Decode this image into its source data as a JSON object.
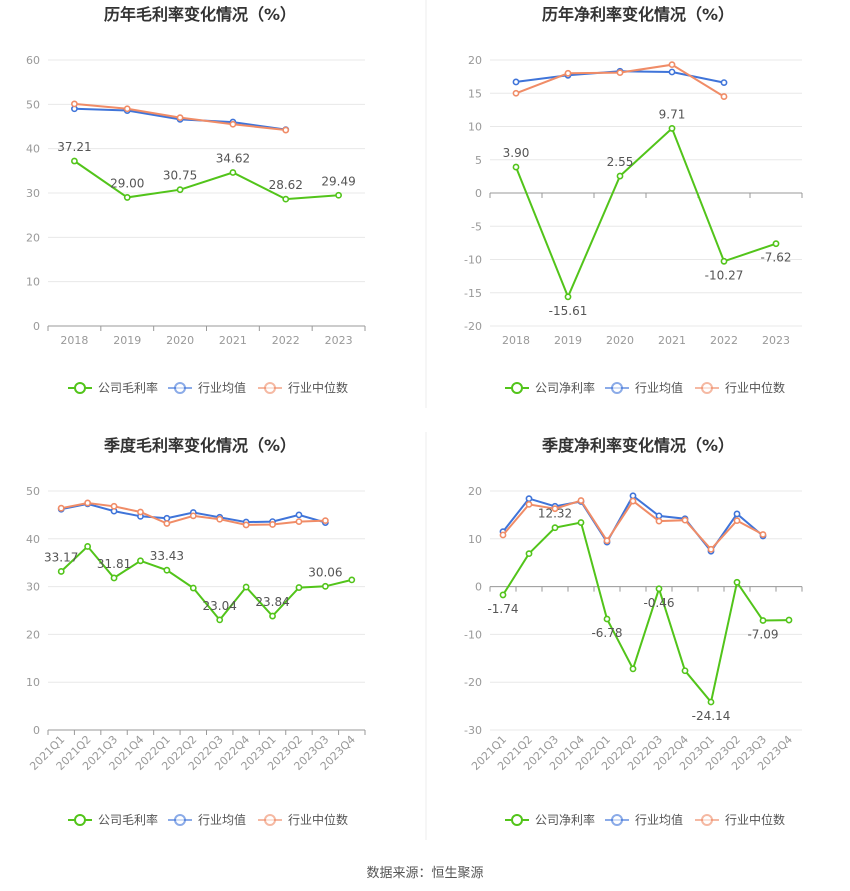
{
  "colors": {
    "company": "#52c41a",
    "industry_avg": "#3f74d9",
    "industry_median": "#f08c67",
    "grid": "#e8e8e8",
    "axis": "#999999",
    "tick_text": "#999999",
    "label_text": "#555555",
    "title_text": "#333333"
  },
  "source": {
    "label": "数据来源：",
    "name": "恒生聚源"
  },
  "chart_data": [
    {
      "id": "annual-gross",
      "type": "line",
      "title": "历年毛利率变化情况（%）",
      "categories": [
        "2018",
        "2019",
        "2020",
        "2021",
        "2022",
        "2023"
      ],
      "ylim": [
        0,
        60
      ],
      "yticks": [
        0,
        10,
        20,
        30,
        40,
        50,
        60
      ],
      "legend": [
        "公司毛利率",
        "行业均值",
        "行业中位数"
      ],
      "series": [
        {
          "name": "公司毛利率",
          "key": "company",
          "values": [
            37.21,
            29.0,
            30.75,
            34.62,
            28.62,
            29.49
          ],
          "labels": [
            "37.21",
            "29.00",
            "30.75",
            "34.62",
            "28.62",
            "29.49"
          ]
        },
        {
          "name": "行业均值",
          "key": "industry_avg",
          "values": [
            49.0,
            48.6,
            46.6,
            46.0,
            44.3,
            null
          ]
        },
        {
          "name": "行业中位数",
          "key": "industry_median",
          "values": [
            50.1,
            49.0,
            47.0,
            45.5,
            44.2,
            null
          ]
        }
      ]
    },
    {
      "id": "annual-net",
      "type": "line",
      "title": "历年净利率变化情况（%）",
      "categories": [
        "2018",
        "2019",
        "2020",
        "2021",
        "2022",
        "2023"
      ],
      "ylim": [
        -20,
        20
      ],
      "yticks": [
        -20,
        -15,
        -10,
        -5,
        0,
        5,
        10,
        15,
        20
      ],
      "legend": [
        "公司净利率",
        "行业均值",
        "行业中位数"
      ],
      "series": [
        {
          "name": "公司净利率",
          "key": "company",
          "values": [
            3.9,
            -15.61,
            2.55,
            9.71,
            -10.27,
            -7.62
          ],
          "labels": [
            "3.90",
            "-15.61",
            "2.55",
            "9.71",
            "-10.27",
            "-7.62"
          ]
        },
        {
          "name": "行业均值",
          "key": "industry_avg",
          "values": [
            16.7,
            17.7,
            18.3,
            18.2,
            16.6,
            null
          ]
        },
        {
          "name": "行业中位数",
          "key": "industry_median",
          "values": [
            15.0,
            18.0,
            18.1,
            19.3,
            14.5,
            null
          ]
        }
      ]
    },
    {
      "id": "quarterly-gross",
      "type": "line",
      "title": "季度毛利率变化情况（%）",
      "categories": [
        "2021Q1",
        "2021Q2",
        "2021Q3",
        "2021Q4",
        "2022Q1",
        "2022Q2",
        "2022Q3",
        "2022Q4",
        "2023Q1",
        "2023Q2",
        "2023Q3",
        "2023Q4"
      ],
      "ylim": [
        0,
        50
      ],
      "yticks": [
        0,
        10,
        20,
        30,
        40,
        50
      ],
      "legend": [
        "公司毛利率",
        "行业均值",
        "行业中位数"
      ],
      "series": [
        {
          "name": "公司毛利率",
          "key": "company",
          "values": [
            33.17,
            38.4,
            31.81,
            35.4,
            33.43,
            29.7,
            23.04,
            29.9,
            23.84,
            29.8,
            30.06,
            31.4
          ],
          "labels": [
            "33.17",
            "",
            "31.81",
            "",
            "33.43",
            "",
            "23.04",
            "",
            "23.84",
            "",
            "30.06",
            ""
          ]
        },
        {
          "name": "行业均值",
          "key": "industry_avg",
          "values": [
            46.2,
            47.3,
            45.8,
            44.7,
            44.3,
            45.5,
            44.5,
            43.5,
            43.6,
            45.0,
            43.4,
            null
          ]
        },
        {
          "name": "行业中位数",
          "key": "industry_median",
          "values": [
            46.4,
            47.5,
            46.8,
            45.6,
            43.2,
            44.8,
            44.1,
            42.9,
            43.0,
            43.6,
            43.8,
            null
          ]
        }
      ]
    },
    {
      "id": "quarterly-net",
      "type": "line",
      "title": "季度净利率变化情况（%）",
      "categories": [
        "2021Q1",
        "2021Q2",
        "2021Q3",
        "2021Q4",
        "2022Q1",
        "2022Q2",
        "2022Q3",
        "2022Q4",
        "2023Q1",
        "2023Q2",
        "2023Q3",
        "2023Q4"
      ],
      "ylim": [
        -30,
        20
      ],
      "yticks": [
        -30,
        -20,
        -10,
        0,
        10,
        20
      ],
      "legend": [
        "公司净利率",
        "行业均值",
        "行业中位数"
      ],
      "series": [
        {
          "name": "公司净利率",
          "key": "company",
          "values": [
            -1.74,
            6.9,
            12.32,
            13.4,
            -6.78,
            -17.2,
            -0.46,
            -17.6,
            -24.14,
            0.9,
            -7.09,
            -7.0
          ],
          "labels": [
            "-1.74",
            "",
            "12.32",
            "",
            "-6.78",
            "",
            "-0.46",
            "",
            "-24.14",
            "",
            "-7.09",
            ""
          ]
        },
        {
          "name": "行业均值",
          "key": "industry_avg",
          "values": [
            11.5,
            18.4,
            16.8,
            17.8,
            9.3,
            19.0,
            14.8,
            14.2,
            7.4,
            15.2,
            10.6,
            null
          ]
        },
        {
          "name": "行业中位数",
          "key": "industry_median",
          "values": [
            10.8,
            17.2,
            16.3,
            18.0,
            9.6,
            17.9,
            13.7,
            13.9,
            7.8,
            13.8,
            10.9,
            null
          ]
        }
      ]
    }
  ]
}
